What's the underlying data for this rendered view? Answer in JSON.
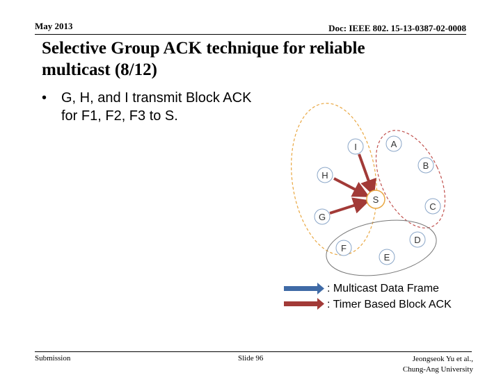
{
  "header": {
    "date": "May 2013",
    "doc": "Doc: IEEE 802. 15-13-0387-02-0008"
  },
  "slide": {
    "title": "Selective Group ACK technique for reliable multicast (8/12)",
    "bullet": "G, H, and I transmit Block ACK for F1, F2, F3 to S."
  },
  "diagram": {
    "nodes": {
      "A": "A",
      "B": "B",
      "C": "C",
      "D": "D",
      "E": "E",
      "F": "F",
      "G": "G",
      "H": "H",
      "I": "I",
      "S": "S"
    },
    "colors": {
      "node_fill": "#ffffff",
      "node_stroke": "#8aa6c8",
      "multicast_arrow": "#3f6aa6",
      "ack_arrow": "#a23a37",
      "group_orange": "#e9a741",
      "group_red": "#c0504d",
      "group_grey": "#666666"
    }
  },
  "legend": {
    "multicast": ": Multicast Data Frame",
    "ack": ": Timer Based Block ACK"
  },
  "footer": {
    "submission": "Submission",
    "slide": "Slide 96",
    "author_line1": "Jeongseok Yu et al.,",
    "author_line2": "Chung-Ang University"
  }
}
